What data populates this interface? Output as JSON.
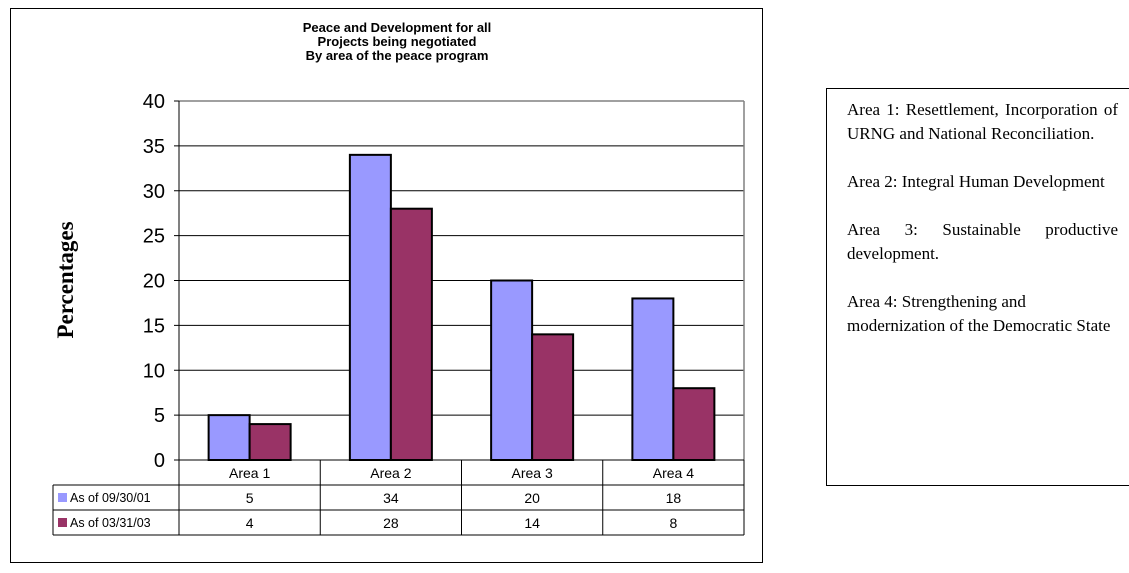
{
  "chart_data": {
    "type": "bar",
    "title": [
      "Peace and Development for all",
      "Projects being negotiated",
      "By area of the peace program"
    ],
    "ylabel": "Percentages",
    "xlabel": "",
    "ylim": [
      0,
      40
    ],
    "yticks": [
      "0",
      "5",
      "10",
      "15",
      "20",
      "25",
      "30",
      "35",
      "40"
    ],
    "grid": true,
    "categories": [
      "Area 1",
      "Area 2",
      "Area 3",
      "Area 4"
    ],
    "series": [
      {
        "name": "As of 09/30/01",
        "color": "#9999ff",
        "values": [
          5,
          34,
          20,
          18
        ]
      },
      {
        "name": "As of 03/31/03",
        "color": "#993366",
        "values": [
          4,
          28,
          14,
          8
        ]
      }
    ],
    "data_table": [
      [
        "5",
        "34",
        "20",
        "18"
      ],
      [
        "4",
        "28",
        "14",
        "8"
      ]
    ],
    "plot_background": "#ffffff",
    "gridline_color": "#000000"
  },
  "notes": [
    {
      "text": "Area 1: Resettlement, Incorporation of URNG and National Reconciliation."
    },
    {
      "text": "Area 2: Integral Human Development"
    },
    {
      "text": "Area 3: Sustainable productive development."
    },
    {
      "text": "Area 4: Strengthening and modernization of the Democratic State"
    }
  ]
}
